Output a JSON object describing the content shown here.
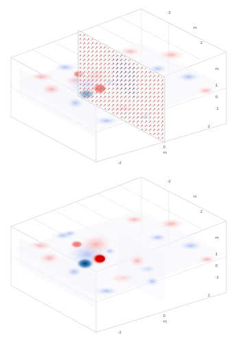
{
  "panels": [
    {
      "id": "top",
      "axes": {
        "x_ticks": [
          "-2",
          "0",
          "2"
        ],
        "y_ticks": [
          "-2",
          "0",
          "2"
        ],
        "z_ticks": [
          "-1",
          "0",
          "1"
        ],
        "x_unit": "m",
        "y_unit": "m",
        "z_unit": "m"
      },
      "features": {
        "vertical_arrow_plane": true
      }
    },
    {
      "id": "bottom",
      "axes": {
        "x_ticks": [
          "-2",
          "0",
          "2"
        ],
        "y_ticks": [
          "-2",
          "0",
          "2"
        ],
        "z_ticks": [
          "-1",
          "0",
          "1"
        ],
        "x_unit": "m",
        "y_unit": "m",
        "z_unit": "m"
      },
      "features": {
        "vertical_arrow_plane": false
      }
    }
  ],
  "colors": {
    "positive": "#e2231a",
    "negative": "#1b2fd1",
    "neutral": "#ffffff",
    "axis_box": "#c9c9c9",
    "arrow_red": "#c0392b",
    "arrow_blue": "#2c3e50"
  }
}
